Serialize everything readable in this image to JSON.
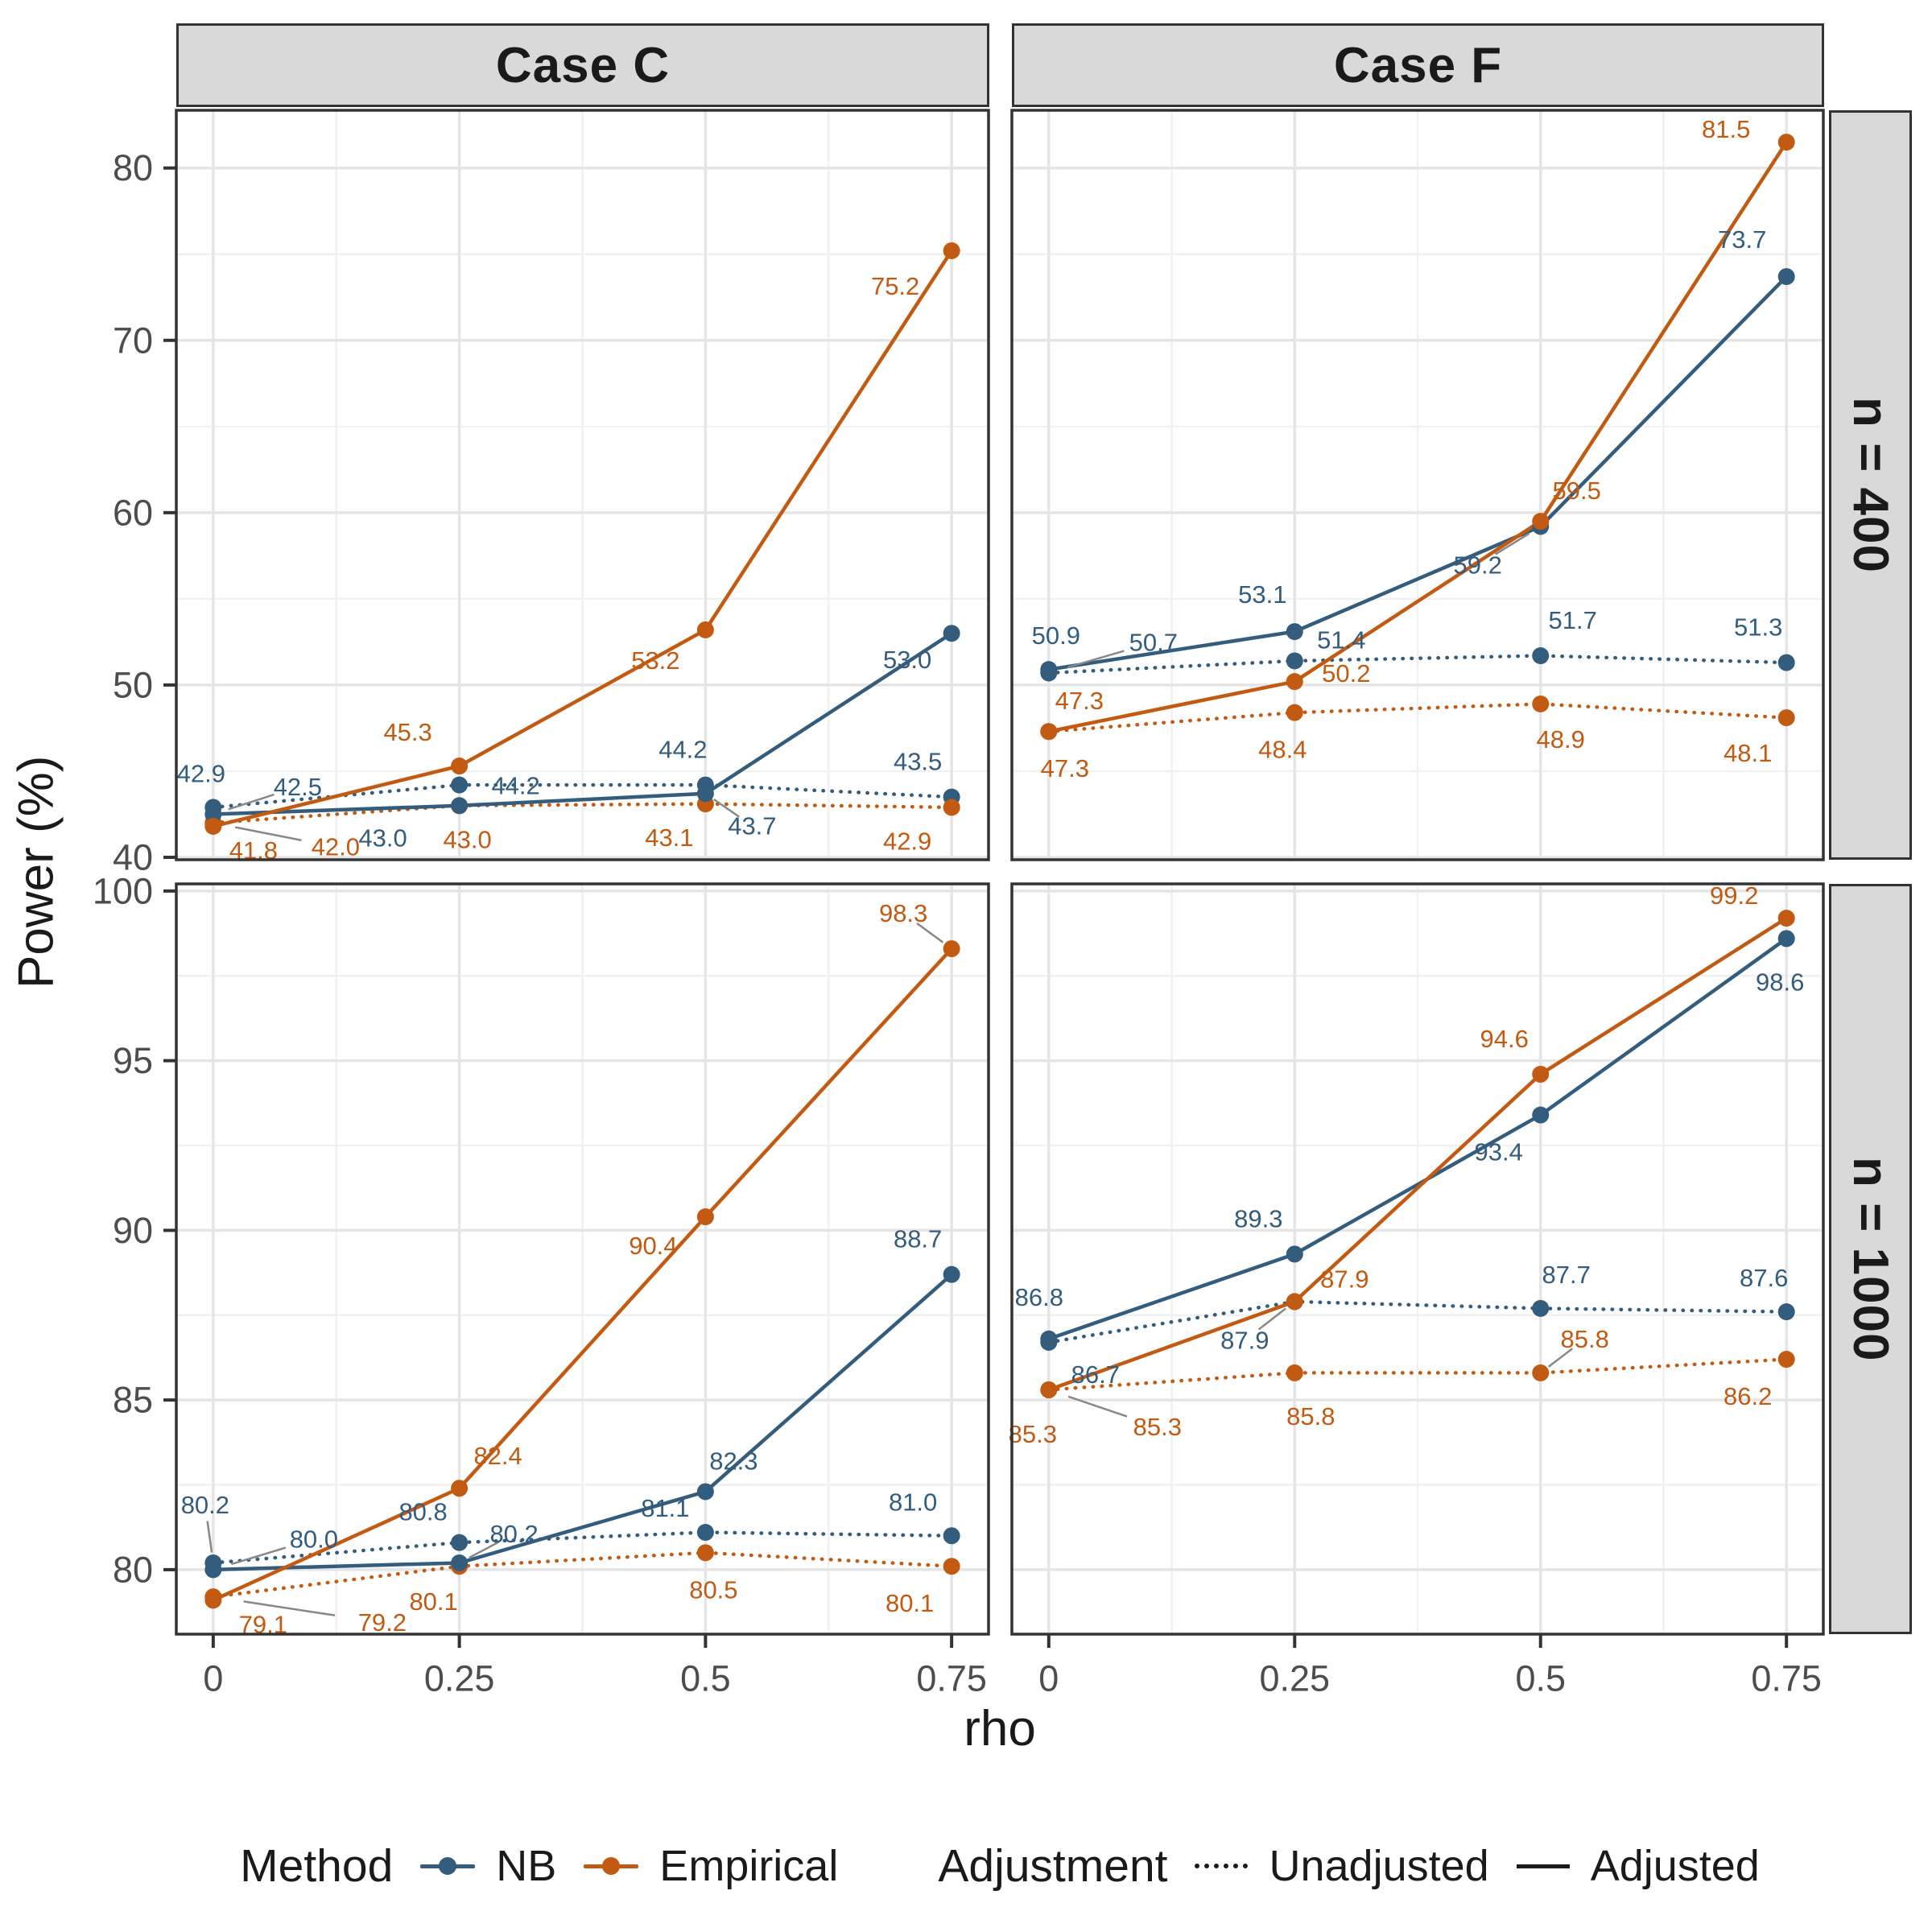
{
  "chart_data": {
    "type": "line",
    "title": "",
    "xlabel": "rho",
    "ylabel": "Power (%)",
    "x": [
      0,
      0.25,
      0.5,
      0.75
    ],
    "x_tick_labels": [
      "0",
      "0.25",
      "0.5",
      "0.75"
    ],
    "x_minor": [
      0.125,
      0.375,
      0.625
    ],
    "xlim": [
      -0.0375,
      0.7875
    ],
    "grid": "on",
    "legend_position": "bottom",
    "colors": {
      "NB": "#335C7D",
      "Empirical": "#C35A11"
    },
    "col_facets": [
      "Case C",
      "Case F"
    ],
    "row_facets": [
      {
        "label": "n = 400",
        "ylim": [
          39.86,
          83.35
        ],
        "yticks": [
          80,
          70,
          60,
          50,
          40
        ],
        "ytick_labels": [
          "80",
          "70",
          "60",
          "50",
          "40"
        ],
        "yminor": [
          75,
          65,
          55,
          45
        ]
      },
      {
        "label": "n = 1000",
        "ylim": [
          78.1,
          100.21
        ],
        "yticks": [
          100,
          95,
          90,
          85,
          80
        ],
        "ytick_labels": [
          "100",
          "95",
          "90",
          "85",
          "80"
        ],
        "yminor": [
          97.5,
          92.5,
          87.5,
          82.5
        ]
      }
    ],
    "panels": [
      {
        "col": 0,
        "row": 0,
        "series": [
          {
            "method": "NB",
            "adjustment": "Unadjusted",
            "values": [
              42.9,
              44.2,
              44.2,
              43.5
            ],
            "labels": [
              {
                "t": "42.9",
                "dx": -15,
                "dy": -42,
                "ld": false
              },
              {
                "t": "44.2",
                "dx": 70,
                "dy": 1,
                "ld": false
              },
              {
                "t": "44.2",
                "dx": -28,
                "dy": -44,
                "ld": false
              },
              {
                "t": "43.5",
                "dx": -42,
                "dy": -44,
                "ld": false
              }
            ]
          },
          {
            "method": "Empirical",
            "adjustment": "Unadjusted",
            "values": [
              42.0,
              43.0,
              43.1,
              42.9
            ],
            "labels": [
              {
                "t": "42.0",
                "dx": 152,
                "dy": 30,
                "ld": true
              },
              {
                "t": "43.0",
                "dx": 10,
                "dy": 42,
                "ld": false
              },
              {
                "t": "43.1",
                "dx": -45,
                "dy": 42,
                "ld": false
              },
              {
                "t": "42.9",
                "dx": -55,
                "dy": 42,
                "ld": false
              }
            ]
          },
          {
            "method": "NB",
            "adjustment": "Adjusted",
            "values": [
              42.5,
              43.0,
              43.7,
              53.0
            ],
            "labels": [
              {
                "t": "42.5",
                "dx": 105,
                "dy": -34,
                "ld": true
              },
              {
                "t": "43.0",
                "dx": -95,
                "dy": 40,
                "ld": false
              },
              {
                "t": "43.7",
                "dx": 58,
                "dy": 40,
                "ld": true
              },
              {
                "t": "53.0",
                "dx": -55,
                "dy": 33,
                "ld": false
              }
            ]
          },
          {
            "method": "Empirical",
            "adjustment": "Adjusted",
            "values": [
              41.8,
              45.3,
              53.2,
              75.2
            ],
            "labels": [
              {
                "t": "41.8",
                "dx": 50,
                "dy": 30,
                "ld": false
              },
              {
                "t": "45.3",
                "dx": -64,
                "dy": -42,
                "ld": false
              },
              {
                "t": "53.2",
                "dx": -62,
                "dy": 38,
                "ld": false
              },
              {
                "t": "75.2",
                "dx": -70,
                "dy": 44,
                "ld": false
              }
            ]
          }
        ]
      },
      {
        "col": 1,
        "row": 0,
        "series": [
          {
            "method": "NB",
            "adjustment": "Unadjusted",
            "values": [
              50.7,
              51.4,
              51.7,
              51.3
            ],
            "labels": [
              {
                "t": "50.7",
                "dx": 130,
                "dy": -38,
                "ld": true
              },
              {
                "t": "51.4",
                "dx": 58,
                "dy": -26,
                "ld": false
              },
              {
                "t": "51.7",
                "dx": 40,
                "dy": -44,
                "ld": false
              },
              {
                "t": "51.3",
                "dx": -35,
                "dy": -44,
                "ld": false
              }
            ]
          },
          {
            "method": "Empirical",
            "adjustment": "Unadjusted",
            "values": [
              47.3,
              48.4,
              48.9,
              48.1
            ],
            "labels": [
              {
                "t": "47.3",
                "dx": 20,
                "dy": 46,
                "ld": false
              },
              {
                "t": "48.4",
                "dx": -15,
                "dy": 46,
                "ld": false
              },
              {
                "t": "48.9",
                "dx": 25,
                "dy": 44,
                "ld": false
              },
              {
                "t": "48.1",
                "dx": -48,
                "dy": 44,
                "ld": false
              }
            ]
          },
          {
            "method": "NB",
            "adjustment": "Adjusted",
            "values": [
              50.9,
              53.1,
              59.2,
              73.7
            ],
            "labels": [
              {
                "t": "50.9",
                "dx": 9,
                "dy": -42,
                "ld": false
              },
              {
                "t": "53.1",
                "dx": -40,
                "dy": -46,
                "ld": false
              },
              {
                "t": "59.2",
                "dx": -78,
                "dy": 48,
                "ld": true
              },
              {
                "t": "73.7",
                "dx": -55,
                "dy": -46,
                "ld": false
              }
            ]
          },
          {
            "method": "Empirical",
            "adjustment": "Adjusted",
            "values": [
              47.3,
              50.2,
              59.5,
              81.5
            ],
            "labels": [
              {
                "t": "47.3",
                "dx": 38,
                "dy": -38,
                "ld": false
              },
              {
                "t": "50.2",
                "dx": 64,
                "dy": -10,
                "ld": false
              },
              {
                "t": "59.5",
                "dx": 45,
                "dy": -38,
                "ld": false
              },
              {
                "t": "81.5",
                "dx": -75,
                "dy": -16,
                "ld": false
              }
            ]
          }
        ]
      },
      {
        "col": 0,
        "row": 1,
        "series": [
          {
            "method": "NB",
            "adjustment": "Unadjusted",
            "values": [
              80.2,
              80.8,
              81.1,
              81.0
            ],
            "labels": [
              {
                "t": "80.2",
                "dx": -10,
                "dy": -72,
                "ld": true
              },
              {
                "t": "80.8",
                "dx": -45,
                "dy": -38,
                "ld": false
              },
              {
                "t": "81.1",
                "dx": -50,
                "dy": -30,
                "ld": false
              },
              {
                "t": "81.0",
                "dx": -48,
                "dy": -42,
                "ld": false
              }
            ]
          },
          {
            "method": "Empirical",
            "adjustment": "Unadjusted",
            "values": [
              79.2,
              80.1,
              80.5,
              80.1
            ],
            "labels": [
              {
                "t": "79.2",
                "dx": 210,
                "dy": 32,
                "ld": true
              },
              {
                "t": "80.1",
                "dx": -32,
                "dy": 44,
                "ld": false
              },
              {
                "t": "80.5",
                "dx": 10,
                "dy": 46,
                "ld": false
              },
              {
                "t": "80.1",
                "dx": -52,
                "dy": 46,
                "ld": false
              }
            ]
          },
          {
            "method": "NB",
            "adjustment": "Adjusted",
            "values": [
              80.0,
              80.2,
              82.3,
              88.7
            ],
            "labels": [
              {
                "t": "80.0",
                "dx": 125,
                "dy": -38,
                "ld": true
              },
              {
                "t": "80.2",
                "dx": 68,
                "dy": -36,
                "ld": true
              },
              {
                "t": "82.3",
                "dx": 35,
                "dy": -38,
                "ld": false
              },
              {
                "t": "88.7",
                "dx": -42,
                "dy": -44,
                "ld": false
              }
            ]
          },
          {
            "method": "Empirical",
            "adjustment": "Adjusted",
            "values": [
              79.1,
              82.4,
              90.4,
              98.3
            ],
            "labels": [
              {
                "t": "79.1",
                "dx": 62,
                "dy": 30,
                "ld": false
              },
              {
                "t": "82.4",
                "dx": 48,
                "dy": -40,
                "ld": false
              },
              {
                "t": "90.4",
                "dx": -65,
                "dy": 36,
                "ld": false
              },
              {
                "t": "98.3",
                "dx": -60,
                "dy": -44,
                "ld": true
              }
            ]
          }
        ]
      },
      {
        "col": 1,
        "row": 1,
        "series": [
          {
            "method": "NB",
            "adjustment": "Unadjusted",
            "values": [
              86.7,
              87.9,
              87.7,
              87.6
            ],
            "labels": [
              {
                "t": "86.7",
                "dx": 58,
                "dy": 40,
                "ld": false
              },
              {
                "t": "87.9",
                "dx": -62,
                "dy": 48,
                "ld": true
              },
              {
                "t": "87.7",
                "dx": 32,
                "dy": -42,
                "ld": false
              },
              {
                "t": "87.6",
                "dx": -28,
                "dy": -42,
                "ld": false
              }
            ]
          },
          {
            "method": "Empirical",
            "adjustment": "Unadjusted",
            "values": [
              85.3,
              85.8,
              85.8,
              86.2
            ],
            "labels": [
              {
                "t": "85.3",
                "dx": 135,
                "dy": 46,
                "ld": true
              },
              {
                "t": "85.8",
                "dx": 20,
                "dy": 54,
                "ld": false
              },
              {
                "t": "85.8",
                "dx": 55,
                "dy": -42,
                "ld": true
              },
              {
                "t": "86.2",
                "dx": -48,
                "dy": 46,
                "ld": false
              }
            ]
          },
          {
            "method": "NB",
            "adjustment": "Adjusted",
            "values": [
              86.8,
              89.3,
              93.4,
              98.6
            ],
            "labels": [
              {
                "t": "86.8",
                "dx": -12,
                "dy": -52,
                "ld": false
              },
              {
                "t": "89.3",
                "dx": -45,
                "dy": -44,
                "ld": false
              },
              {
                "t": "93.4",
                "dx": -52,
                "dy": 46,
                "ld": false
              },
              {
                "t": "98.6",
                "dx": -8,
                "dy": 54,
                "ld": false
              }
            ]
          },
          {
            "method": "Empirical",
            "adjustment": "Adjusted",
            "values": [
              85.3,
              87.9,
              94.6,
              99.2
            ],
            "labels": [
              {
                "t": "85.3",
                "dx": -20,
                "dy": 55,
                "ld": false
              },
              {
                "t": "87.9",
                "dx": 62,
                "dy": -28,
                "ld": false
              },
              {
                "t": "94.6",
                "dx": -45,
                "dy": -44,
                "ld": false
              },
              {
                "t": "99.2",
                "dx": -65,
                "dy": -28,
                "ld": false
              }
            ]
          }
        ]
      }
    ],
    "legend": {
      "method_title": "Method",
      "methods": [
        {
          "label": "NB"
        },
        {
          "label": "Empirical"
        }
      ],
      "adjustment_title": "Adjustment",
      "adjustments": [
        {
          "label": "Unadjusted",
          "style": "dotted"
        },
        {
          "label": "Adjusted",
          "style": "solid"
        }
      ]
    }
  }
}
